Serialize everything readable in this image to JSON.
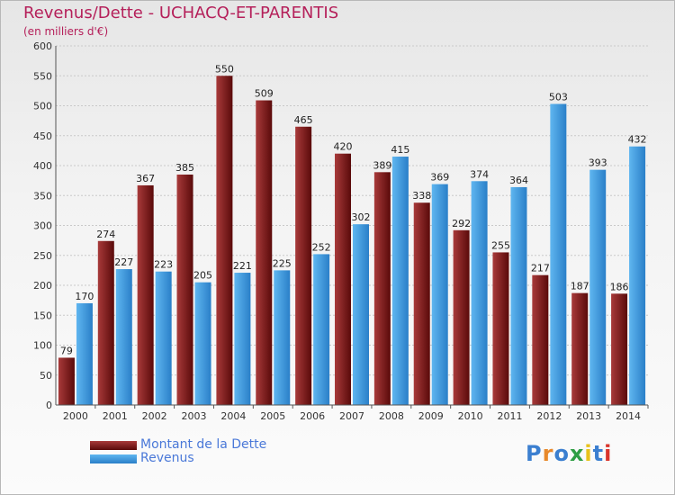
{
  "title": "Revenus/Dette - UCHACQ-ET-PARENTIS",
  "subtitle": "(en milliers d'€)",
  "logo_text": "Proxiti",
  "colors": {
    "title": "#b5205a",
    "dette": "#7a1a1a",
    "revenus": "#3d9be0",
    "legend_text": "#4a78d8"
  },
  "chart_data": {
    "type": "bar",
    "title": "Revenus/Dette - UCHACQ-ET-PARENTIS",
    "subtitle": "(en milliers d'€)",
    "categories": [
      "2000",
      "2001",
      "2002",
      "2003",
      "2004",
      "2005",
      "2006",
      "2007",
      "2008",
      "2009",
      "2010",
      "2011",
      "2012",
      "2013",
      "2014"
    ],
    "series": [
      {
        "name": "Montant de la Dette",
        "color": "#7a1a1a",
        "values": [
          79,
          274,
          367,
          385,
          550,
          509,
          465,
          420,
          389,
          338,
          292,
          255,
          217,
          187,
          186
        ]
      },
      {
        "name": "Revenus",
        "color": "#3d9be0",
        "values": [
          170,
          227,
          223,
          205,
          221,
          225,
          252,
          302,
          415,
          369,
          374,
          364,
          503,
          393,
          432
        ]
      }
    ],
    "yticks": [
      0,
      50,
      100,
      150,
      200,
      250,
      300,
      350,
      400,
      450,
      500,
      550,
      600
    ],
    "ylim": [
      0,
      600
    ],
    "grid": true,
    "legend_position": "bottom-left"
  }
}
